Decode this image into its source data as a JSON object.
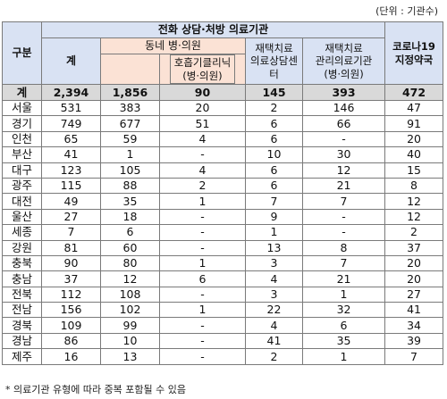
{
  "unit_note": "(단위 : 기관수)",
  "footnote": "* 의료기관 유형에 따라 중복 포함될 수 있음",
  "header": {
    "category": "구분",
    "group_title": "전화 상담·처방 의료기관",
    "total_col": "계",
    "clinic_group": "동네 병·의원",
    "respiratory_line1": "호흡기클리닉",
    "respiratory_line2": "(병·의원)",
    "home_counsel_line1": "재택치료",
    "home_counsel_line2": "의료상담센터",
    "home_manage_line1": "재택치료",
    "home_manage_line2": "관리의료기관",
    "home_manage_line3": "(병·의원)",
    "pharmacy_line1": "코로나19",
    "pharmacy_line2": "지정약국"
  },
  "total_row": {
    "label": "계",
    "total": "2,394",
    "clinic": "1,856",
    "respiratory": "90",
    "counsel": "145",
    "manage": "393",
    "pharmacy": "472"
  },
  "rows": [
    {
      "region": "서울",
      "total": "531",
      "clinic": "383",
      "respiratory": "20",
      "counsel": "2",
      "manage": "146",
      "pharmacy": "47"
    },
    {
      "region": "경기",
      "total": "749",
      "clinic": "677",
      "respiratory": "51",
      "counsel": "6",
      "manage": "66",
      "pharmacy": "91"
    },
    {
      "region": "인천",
      "total": "65",
      "clinic": "59",
      "respiratory": "4",
      "counsel": "6",
      "manage": "-",
      "pharmacy": "20"
    },
    {
      "region": "부산",
      "total": "41",
      "clinic": "1",
      "respiratory": "-",
      "counsel": "10",
      "manage": "30",
      "pharmacy": "40"
    },
    {
      "region": "대구",
      "total": "123",
      "clinic": "105",
      "respiratory": "4",
      "counsel": "6",
      "manage": "12",
      "pharmacy": "15"
    },
    {
      "region": "광주",
      "total": "115",
      "clinic": "88",
      "respiratory": "2",
      "counsel": "6",
      "manage": "21",
      "pharmacy": "8"
    },
    {
      "region": "대전",
      "total": "49",
      "clinic": "35",
      "respiratory": "1",
      "counsel": "7",
      "manage": "7",
      "pharmacy": "12"
    },
    {
      "region": "울산",
      "total": "27",
      "clinic": "18",
      "respiratory": "-",
      "counsel": "9",
      "manage": "-",
      "pharmacy": "12"
    },
    {
      "region": "세종",
      "total": "7",
      "clinic": "6",
      "respiratory": "-",
      "counsel": "1",
      "manage": "-",
      "pharmacy": "2"
    },
    {
      "region": "강원",
      "total": "81",
      "clinic": "60",
      "respiratory": "-",
      "counsel": "13",
      "manage": "8",
      "pharmacy": "37"
    },
    {
      "region": "충북",
      "total": "90",
      "clinic": "80",
      "respiratory": "1",
      "counsel": "3",
      "manage": "7",
      "pharmacy": "20"
    },
    {
      "region": "충남",
      "total": "37",
      "clinic": "12",
      "respiratory": "6",
      "counsel": "4",
      "manage": "21",
      "pharmacy": "20"
    },
    {
      "region": "전북",
      "total": "112",
      "clinic": "108",
      "respiratory": "-",
      "counsel": "3",
      "manage": "1",
      "pharmacy": "27"
    },
    {
      "region": "전남",
      "total": "156",
      "clinic": "102",
      "respiratory": "1",
      "counsel": "22",
      "manage": "32",
      "pharmacy": "41"
    },
    {
      "region": "경북",
      "total": "109",
      "clinic": "99",
      "respiratory": "-",
      "counsel": "4",
      "manage": "6",
      "pharmacy": "34"
    },
    {
      "region": "경남",
      "total": "86",
      "clinic": "10",
      "respiratory": "-",
      "counsel": "41",
      "manage": "35",
      "pharmacy": "39"
    },
    {
      "region": "제주",
      "total": "16",
      "clinic": "13",
      "respiratory": "-",
      "counsel": "2",
      "manage": "1",
      "pharmacy": "7"
    }
  ]
}
